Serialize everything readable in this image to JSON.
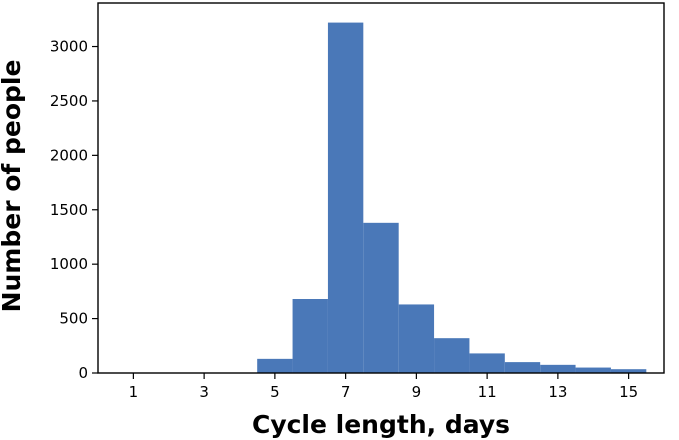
{
  "chart_data": {
    "type": "bar",
    "title": "",
    "xlabel": "Cycle length, days",
    "ylabel": "Number of people",
    "x": [
      1,
      2,
      3,
      4,
      5,
      6,
      7,
      8,
      9,
      10,
      11,
      12,
      13,
      14,
      15
    ],
    "values": [
      2,
      1,
      3,
      2,
      130,
      680,
      3220,
      1380,
      630,
      320,
      180,
      100,
      75,
      50,
      35
    ],
    "xlim": [
      0,
      16
    ],
    "ylim": [
      0,
      3400
    ],
    "xticks": [
      1,
      3,
      5,
      7,
      9,
      11,
      13,
      15
    ],
    "yticks": [
      0,
      500,
      1000,
      1500,
      2000,
      2500,
      3000
    ],
    "bar_color": "#4a78b8",
    "grid": false,
    "legend": "none"
  }
}
